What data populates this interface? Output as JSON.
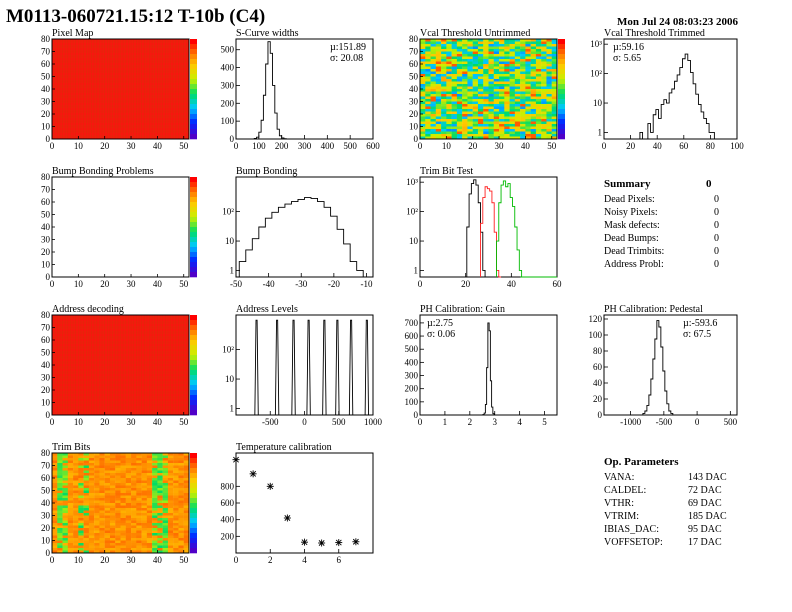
{
  "header": {
    "title": "M0113-060721.15:12 T-10b (C4)",
    "date": "Mon Jul 24 08:03:23 2006"
  },
  "colors": {
    "map_red": "#ff1010",
    "grid_line": "#b05000",
    "hist_line": "#000000",
    "trim_red": "#ff2020",
    "trim_green": "#00bb00"
  },
  "panels": {
    "pixel_map": {
      "title": "Pixel Map"
    },
    "scurve_widths": {
      "title": "S-Curve widths",
      "stat_mean": "µ:151.89",
      "stat_sigma": "σ: 20.08"
    },
    "vcal_untrimmed": {
      "title": "Vcal Threshold Untrimmed"
    },
    "vcal_trimmed": {
      "title": "Vcal Threshold Trimmed",
      "stat_mean": "µ:59.16",
      "stat_sigma": "σ: 5.65"
    },
    "bump_problems": {
      "title": "Bump Bonding Problems"
    },
    "bump_bonding": {
      "title": "Bump Bonding"
    },
    "trim_bit_test": {
      "title": "Trim Bit Test"
    },
    "address_decoding": {
      "title": "Address decoding"
    },
    "address_levels": {
      "title": "Address Levels"
    },
    "ph_gain": {
      "title": "PH Calibration: Gain",
      "stat_mean": "µ:2.75",
      "stat_sigma": "σ: 0.06"
    },
    "ph_pedestal": {
      "title": "PH Calibration: Pedestal",
      "stat_mean": "µ:-593.6",
      "stat_sigma": "σ: 67.5"
    },
    "trim_bits": {
      "title": "Trim Bits"
    },
    "temperature": {
      "title": "Temperature calibration"
    }
  },
  "summary": {
    "title": "Summary",
    "total": "0",
    "rows": [
      {
        "label": "Dead Pixels:",
        "value": "0"
      },
      {
        "label": "Noisy Pixels:",
        "value": "0"
      },
      {
        "label": "Mask defects:",
        "value": "0"
      },
      {
        "label": "Dead Bumps:",
        "value": "0"
      },
      {
        "label": "Dead Trimbits:",
        "value": "0"
      },
      {
        "label": "Address Probl:",
        "value": "0"
      }
    ]
  },
  "op_parameters": {
    "title": "Op. Parameters",
    "rows": [
      {
        "label": "VANA:",
        "value": "143 DAC"
      },
      {
        "label": "CALDEL:",
        "value": "72 DAC"
      },
      {
        "label": "VTHR:",
        "value": "69 DAC"
      },
      {
        "label": "VTRIM:",
        "value": "185 DAC"
      },
      {
        "label": "IBIAS_DAC:",
        "value": "95 DAC"
      },
      {
        "label": "VOFFSETOP:",
        "value": "17 DAC"
      }
    ]
  },
  "chart_data": [
    {
      "id": "pixel_map",
      "type": "heatmap",
      "title": "Pixel Map",
      "xlim": [
        0,
        52
      ],
      "ylim": [
        0,
        80
      ],
      "xticks": [
        0,
        10,
        20,
        30,
        40,
        50
      ],
      "yticks": [
        0,
        10,
        20,
        30,
        40,
        50,
        60,
        70,
        80
      ],
      "uniform_level": "max"
    },
    {
      "id": "scurve_widths",
      "type": "bar",
      "title": "S-Curve widths",
      "xlim": [
        0,
        600
      ],
      "ylim": [
        0,
        560
      ],
      "log_y": false,
      "xticks": [
        0,
        100,
        200,
        300,
        400,
        500,
        600
      ],
      "yticks": [
        0,
        100,
        200,
        300,
        400,
        500
      ],
      "x": [
        85,
        95,
        105,
        115,
        125,
        135,
        145,
        155,
        165,
        175,
        185,
        195,
        205,
        215
      ],
      "values": [
        3,
        10,
        38,
        105,
        245,
        420,
        545,
        480,
        300,
        145,
        55,
        18,
        6,
        2
      ]
    },
    {
      "id": "vcal_untrimmed",
      "type": "heatmap",
      "title": "Vcal Threshold Untrimmed",
      "xlim": [
        0,
        52
      ],
      "ylim": [
        0,
        80
      ],
      "xticks": [
        0,
        10,
        20,
        30,
        40,
        50
      ],
      "yticks": [
        0,
        10,
        20,
        30,
        40,
        50,
        60,
        70,
        80
      ],
      "texture": "noise"
    },
    {
      "id": "vcal_trimmed",
      "type": "bar",
      "title": "Vcal Threshold Trimmed",
      "xlim": [
        0,
        100
      ],
      "ylim": [
        0.6,
        1500
      ],
      "log_y": true,
      "xticks": [
        0,
        20,
        40,
        60,
        80,
        100
      ],
      "yticks": [
        1,
        10,
        100,
        1000
      ],
      "x": [
        28,
        30,
        32,
        34,
        36,
        38,
        40,
        42,
        44,
        46,
        48,
        50,
        52,
        54,
        56,
        58,
        60,
        62,
        64,
        66,
        68,
        70,
        72,
        74,
        76,
        78,
        80,
        82
      ],
      "values": [
        1,
        0.6,
        0.6,
        2,
        1,
        4,
        6,
        3,
        9,
        13,
        10,
        22,
        30,
        55,
        90,
        160,
        320,
        460,
        280,
        110,
        45,
        20,
        9,
        5,
        3,
        2,
        1,
        1
      ]
    },
    {
      "id": "bump_problems",
      "type": "heatmap",
      "title": "Bump Bonding Problems",
      "xlim": [
        0,
        52
      ],
      "ylim": [
        0,
        80
      ],
      "xticks": [
        0,
        10,
        20,
        30,
        40,
        50
      ],
      "yticks": [
        0,
        10,
        20,
        30,
        40,
        50,
        60,
        70,
        80
      ],
      "uniform_level": "empty"
    },
    {
      "id": "bump_bonding",
      "type": "bar",
      "title": "Bump Bonding",
      "xlim": [
        -50,
        -8
      ],
      "ylim": [
        0.6,
        1500
      ],
      "log_y": true,
      "xticks": [
        -50,
        -40,
        -30,
        -20,
        -10
      ],
      "yticks": [
        1,
        10,
        100
      ],
      "x": [
        -48,
        -46,
        -44,
        -42,
        -40,
        -38,
        -36,
        -34,
        -32,
        -30,
        -28,
        -26,
        -24,
        -22,
        -20,
        -18,
        -16,
        -14,
        -12
      ],
      "values": [
        2,
        5,
        12,
        30,
        60,
        95,
        140,
        180,
        220,
        260,
        300,
        280,
        220,
        140,
        70,
        25,
        8,
        2,
        1
      ]
    },
    {
      "id": "trim_bit_test",
      "type": "line",
      "title": "Trim Bit Test",
      "xlim": [
        0,
        60
      ],
      "ylim": [
        0.6,
        1500
      ],
      "log_y": true,
      "xticks": [
        0,
        20,
        40,
        60
      ],
      "yticks": [
        1,
        10,
        100,
        1000
      ],
      "series": [
        {
          "x": [
            21,
            22,
            23,
            24,
            25,
            26,
            27,
            28
          ],
          "values": [
            30,
            400,
            900,
            1200,
            800,
            200,
            20,
            1
          ]
        },
        {
          "x": [
            27,
            28,
            29,
            30,
            31,
            32,
            33,
            34,
            35
          ],
          "values": [
            40,
            300,
            700,
            600,
            500,
            200,
            20,
            1,
            0.6
          ]
        },
        {
          "x": [
            34,
            35,
            36,
            37,
            38,
            39,
            40,
            41,
            42,
            43,
            44
          ],
          "values": [
            10,
            200,
            800,
            1100,
            700,
            900,
            300,
            150,
            30,
            5,
            1
          ]
        }
      ]
    },
    {
      "id": "address_decoding",
      "type": "heatmap",
      "title": "Address decoding",
      "xlim": [
        0,
        52
      ],
      "ylim": [
        0,
        80
      ],
      "xticks": [
        0,
        10,
        20,
        30,
        40,
        50
      ],
      "yticks": [
        0,
        10,
        20,
        30,
        40,
        50,
        60,
        70,
        80
      ],
      "uniform_level": "max"
    },
    {
      "id": "address_levels",
      "type": "line",
      "title": "Address Levels",
      "xlim": [
        -1000,
        1000
      ],
      "ylim": [
        0.6,
        1500
      ],
      "log_y": true,
      "xticks": [
        -500,
        0,
        500,
        1000
      ],
      "yticks": [
        1,
        10,
        100
      ],
      "peaks": [
        -700,
        -400,
        -160,
        60,
        290,
        480,
        680,
        910
      ],
      "peak_value": 1000
    },
    {
      "id": "ph_gain",
      "type": "bar",
      "title": "PH Calibration: Gain",
      "xlim": [
        0,
        5.5
      ],
      "ylim": [
        0,
        760
      ],
      "log_y": false,
      "xticks": [
        0,
        1,
        2,
        3,
        4,
        5
      ],
      "yticks": [
        0,
        100,
        200,
        300,
        400,
        500,
        600,
        700
      ],
      "x": [
        2.55,
        2.6,
        2.65,
        2.7,
        2.75,
        2.8,
        2.85,
        2.9,
        2.95
      ],
      "values": [
        3,
        15,
        80,
        360,
        700,
        640,
        260,
        60,
        10
      ]
    },
    {
      "id": "ph_pedestal",
      "type": "bar",
      "title": "PH Calibration: Pedestal",
      "xlim": [
        -1400,
        600
      ],
      "ylim": [
        0,
        125
      ],
      "log_y": false,
      "xticks": [
        -1000,
        -500,
        0,
        500
      ],
      "yticks": [
        0,
        20,
        40,
        60,
        80,
        100,
        120
      ],
      "x": [
        -800,
        -770,
        -740,
        -710,
        -680,
        -650,
        -620,
        -590,
        -560,
        -530,
        -500,
        -470,
        -440,
        -410,
        -380
      ],
      "values": [
        2,
        5,
        12,
        25,
        45,
        70,
        95,
        118,
        110,
        85,
        55,
        30,
        14,
        5,
        2
      ]
    },
    {
      "id": "trim_bits",
      "type": "heatmap",
      "title": "Trim Bits",
      "xlim": [
        0,
        52
      ],
      "ylim": [
        0,
        80
      ],
      "xticks": [
        0,
        10,
        20,
        30,
        40,
        50
      ],
      "yticks": [
        0,
        10,
        20,
        30,
        40,
        50,
        60,
        70,
        80
      ],
      "texture": "trimbits"
    },
    {
      "id": "temperature",
      "type": "scatter",
      "title": "Temperature calibration",
      "xlim": [
        0,
        8
      ],
      "ylim": [
        0,
        1200
      ],
      "xticks": [
        0,
        2,
        4,
        6
      ],
      "yticks": [
        0,
        200,
        400,
        600,
        800
      ],
      "x": [
        0,
        1,
        2,
        3,
        4,
        5,
        6,
        7
      ],
      "values": [
        1120,
        950,
        800,
        420,
        130,
        120,
        125,
        135
      ]
    }
  ]
}
